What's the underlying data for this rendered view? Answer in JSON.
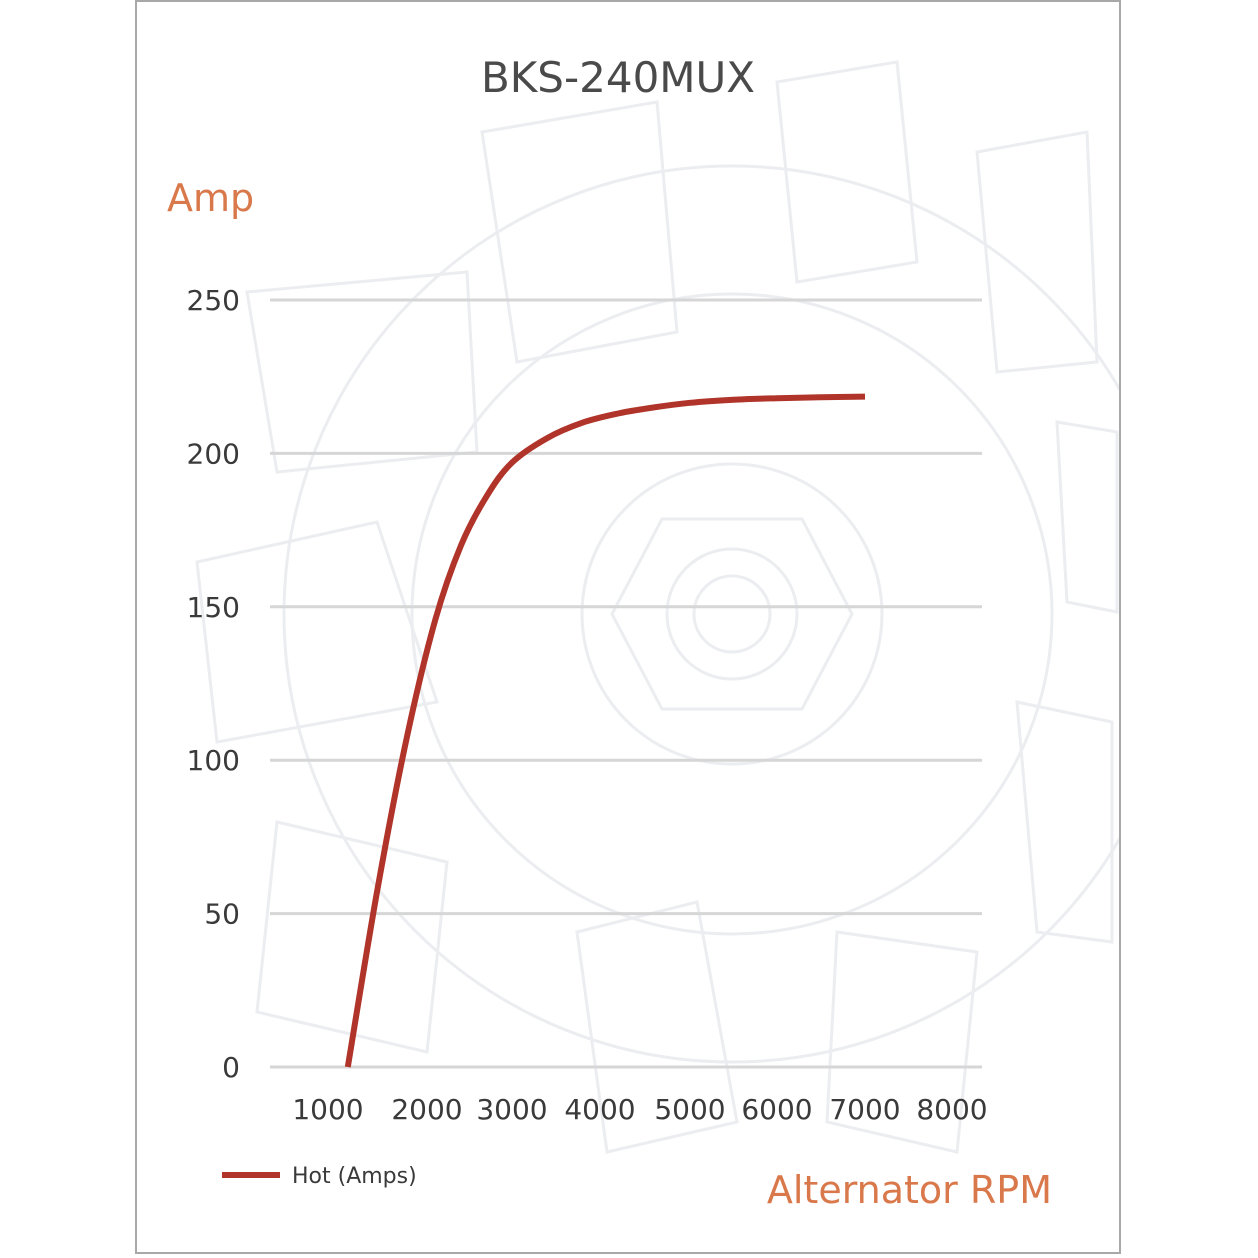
{
  "chart_data": {
    "type": "line",
    "title": "BKS-240MUX",
    "ylabel": "Amp",
    "xlabel": "Alternator RPM",
    "ylim": [
      0,
      250
    ],
    "yticks": [
      "0",
      "50",
      "100",
      "150",
      "200",
      "250"
    ],
    "xticks": [
      "1000",
      "2000",
      "3000",
      "4000",
      "5000",
      "6000",
      "7000",
      "8000"
    ],
    "grid": true,
    "legend_position": "bottom-left",
    "colors": {
      "series": "#b0342a",
      "unit_labels": "#d9784a",
      "grid": "#d6d6d6",
      "frame": "#a8a8a8"
    },
    "series": [
      {
        "name": "Hot (Amps)",
        "x": [
          1200,
          1500,
          1800,
          2100,
          2400,
          2700,
          3000,
          3400,
          3800,
          4200,
          4600,
          5000,
          5500,
          6000,
          6500,
          7000
        ],
        "y": [
          0,
          58,
          108,
          146,
          170,
          186,
          197,
          205,
          210,
          213,
          215,
          216.5,
          217.5,
          218,
          218.3,
          218.5
        ]
      }
    ]
  }
}
